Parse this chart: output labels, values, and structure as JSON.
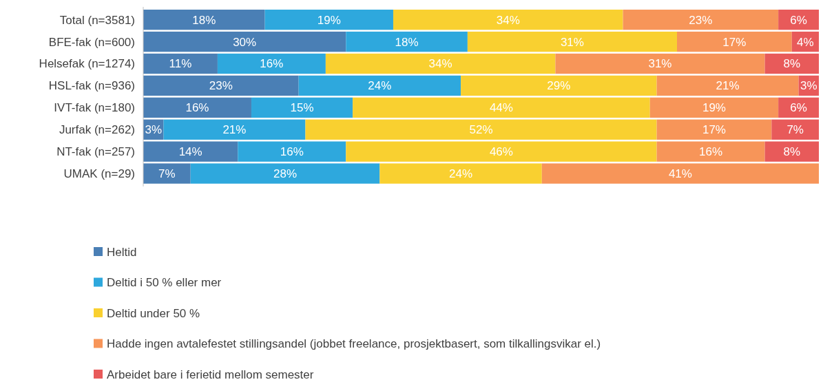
{
  "chart_data": {
    "type": "bar",
    "orientation": "horizontal",
    "stacked": true,
    "legend": "bottom",
    "categories": [
      "Total (n=3581)",
      "BFE-fak (n=600)",
      "Helsefak (n=1274)",
      "HSL-fak (n=936)",
      "IVT-fak (n=180)",
      "Jurfak (n=262)",
      "NT-fak (n=257)",
      "UMAK (n=29)"
    ],
    "series": [
      {
        "name": "Heltid",
        "color": "#4a7fb5",
        "values": [
          18,
          30,
          11,
          23,
          16,
          3,
          14,
          7
        ],
        "value_labels": [
          "18%",
          "30%",
          "11%",
          "23%",
          "16%",
          "3%",
          "14%",
          "7%"
        ]
      },
      {
        "name": "Deltid i 50 % eller mer",
        "color": "#2ea8dd",
        "values": [
          19,
          18,
          16,
          24,
          15,
          21,
          16,
          28
        ],
        "value_labels": [
          "19%",
          "18%",
          "16%",
          "24%",
          "15%",
          "21%",
          "16%",
          "28%"
        ]
      },
      {
        "name": "Deltid under 50 %",
        "color": "#f9d030",
        "values": [
          34,
          31,
          34,
          29,
          44,
          52,
          46,
          24
        ],
        "value_labels": [
          "34%",
          "31%",
          "34%",
          "29%",
          "44%",
          "52%",
          "46%",
          "24%"
        ]
      },
      {
        "name": "Hadde ingen avtalefestet stillingsandel (jobbet freelance, prosjektbasert, som tilkallingsvikar el.)",
        "color": "#f79559",
        "values": [
          23,
          17,
          31,
          21,
          19,
          17,
          16,
          41
        ],
        "value_labels": [
          "23%",
          "17%",
          "31%",
          "21%",
          "19%",
          "17%",
          "16%",
          "41%"
        ]
      },
      {
        "name": "Arbeidet bare i ferietid mellom semester",
        "color": "#e85a5a",
        "values": [
          6,
          4,
          8,
          3,
          6,
          7,
          8,
          null
        ],
        "value_labels": [
          "6%",
          "4%",
          "8%",
          "3%",
          "6%",
          "7%",
          "8%",
          null
        ]
      }
    ]
  }
}
